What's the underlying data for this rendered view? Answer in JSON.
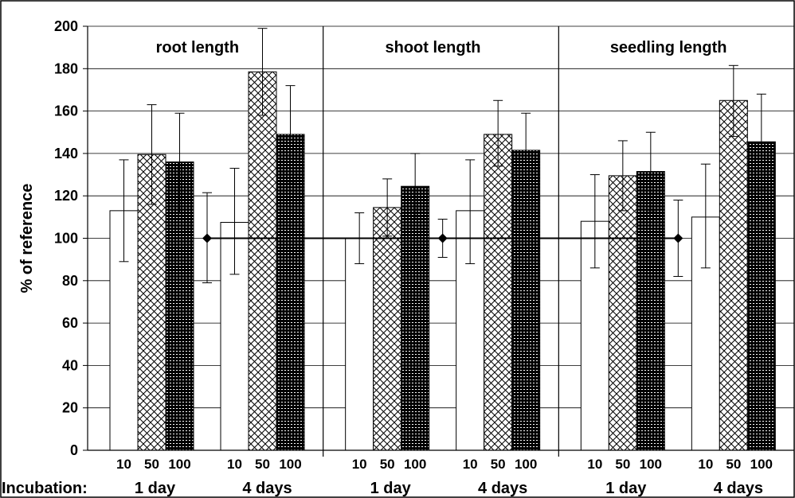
{
  "chart_data": {
    "type": "bar",
    "ylabel": "% of reference",
    "ylim": [
      0,
      200
    ],
    "yticks": [
      0,
      20,
      40,
      60,
      80,
      100,
      120,
      140,
      160,
      180,
      200
    ],
    "grid": true,
    "incubation_label": "Incubation:",
    "reference": {
      "value": 100,
      "marker": "diamond"
    },
    "doses": [
      "10",
      "50",
      "100"
    ],
    "patterns": [
      "empty",
      "crosshatch",
      "dense-dots"
    ],
    "panels": [
      {
        "title": "root length",
        "groups": [
          {
            "label": "1 day",
            "values": [
              113,
              139.5,
              136
            ],
            "errors": [
              [
                89,
                137
              ],
              [
                116,
                163
              ],
              [
                112,
                159
              ]
            ]
          },
          {
            "label": "4 days",
            "values": [
              107.5,
              178.5,
              149
            ],
            "errors": [
              [
                83,
                133
              ],
              [
                158,
                199
              ],
              [
                126,
                172
              ]
            ]
          }
        ],
        "ref_error": [
          79,
          121.5
        ]
      },
      {
        "title": "shoot length",
        "groups": [
          {
            "label": "1 day",
            "values": [
              100,
              114.5,
              124.5
            ],
            "errors": [
              [
                88,
                112
              ],
              [
                101,
                128
              ],
              [
                109,
                140
              ]
            ]
          },
          {
            "label": "4 days",
            "values": [
              113,
              149,
              141.5
            ],
            "errors": [
              [
                88,
                137
              ],
              [
                134,
                165
              ],
              [
                124,
                159
              ]
            ]
          }
        ],
        "ref_error": [
          91,
          109
        ]
      },
      {
        "title": "seedling length",
        "groups": [
          {
            "label": "1 day",
            "values": [
              108,
              129.5,
              131.5
            ],
            "errors": [
              [
                86,
                130
              ],
              [
                113,
                146
              ],
              [
                113,
                150
              ]
            ]
          },
          {
            "label": "4 days",
            "values": [
              110,
              165,
              145.5
            ],
            "errors": [
              [
                86,
                135
              ],
              [
                148,
                181.5
              ],
              [
                123,
                168
              ]
            ]
          }
        ],
        "ref_error": [
          82,
          118
        ]
      }
    ]
  }
}
